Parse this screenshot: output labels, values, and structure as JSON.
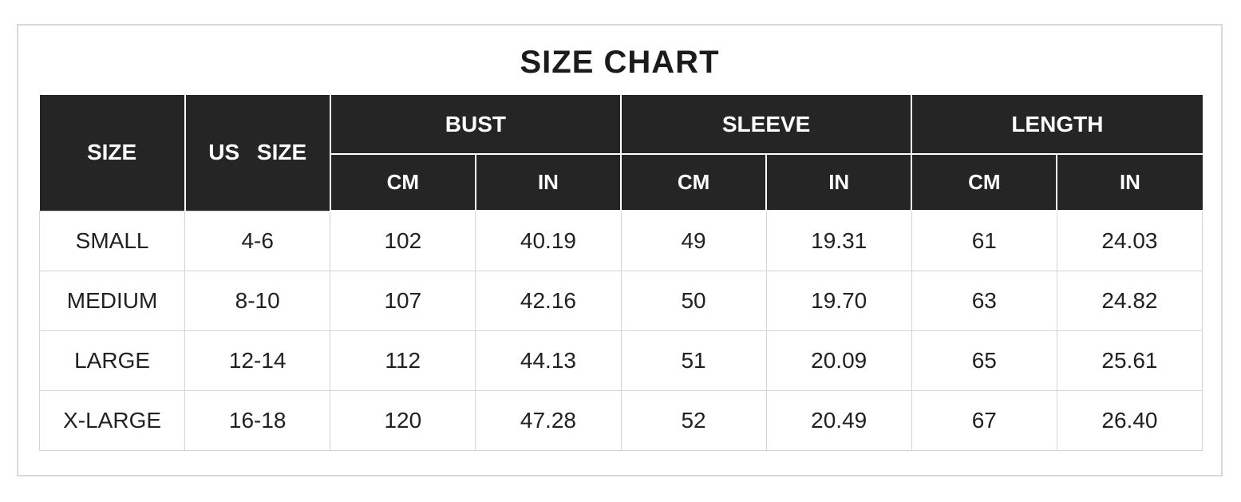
{
  "title": "SIZE CHART",
  "colors": {
    "header_bg": "#262525",
    "header_text": "#ffffff",
    "body_bg": "#ffffff",
    "body_text": "#212121",
    "grid_line": "#d4d4d4",
    "frame_border": "#d8d8d8"
  },
  "headers": {
    "size": "SIZE",
    "us_size": "US SIZE",
    "bust": "BUST",
    "sleeve": "SLEEVE",
    "length": "LENGTH"
  },
  "sub_headers": [
    "CM",
    "IN",
    "CM",
    "IN",
    "CM",
    "IN"
  ],
  "chart_data": {
    "type": "table",
    "title": "SIZE CHART",
    "columns": [
      "SIZE",
      "US SIZE",
      "BUST CM",
      "BUST IN",
      "SLEEVE CM",
      "SLEEVE IN",
      "LENGTH CM",
      "LENGTH IN"
    ],
    "rows": [
      [
        "SMALL",
        "4-6",
        "102",
        "40.19",
        "49",
        "19.31",
        "61",
        "24.03"
      ],
      [
        "MEDIUM",
        "8-10",
        "107",
        "42.16",
        "50",
        "19.70",
        "63",
        "24.82"
      ],
      [
        "LARGE",
        "12-14",
        "112",
        "44.13",
        "51",
        "20.09",
        "65",
        "25.61"
      ],
      [
        "X-LARGE",
        "16-18",
        "120",
        "47.28",
        "52",
        "20.49",
        "67",
        "26.40"
      ]
    ]
  }
}
